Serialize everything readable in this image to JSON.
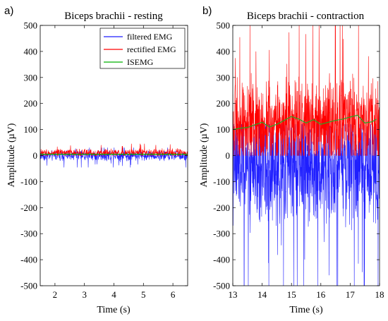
{
  "chart_data": [
    {
      "type": "line",
      "panel_label": "a)",
      "title": "Biceps brachii - resting",
      "xlabel": "Time (s)",
      "ylabel": "Amplitude (µV)",
      "xlim": [
        1.5,
        6.5
      ],
      "ylim": [
        -500,
        500
      ],
      "xticks": [
        2,
        3,
        4,
        5,
        6
      ],
      "yticks": [
        -500,
        -400,
        -300,
        -200,
        -100,
        0,
        100,
        200,
        300,
        400,
        500
      ],
      "grid": false,
      "legend_position": "top-right",
      "series": [
        {
          "name": "filtered EMG",
          "color": "#1f1fff",
          "kind": "noise",
          "center": 0,
          "spread": 12,
          "min": -45,
          "max": 30
        },
        {
          "name": "rectified EMG",
          "color": "#ff0000",
          "kind": "noise",
          "center": 10,
          "spread": 10,
          "min": 0,
          "max": 45
        },
        {
          "name": "ISEMG",
          "color": "#00b000",
          "kind": "line",
          "x": [
            1.5,
            6.5
          ],
          "y": [
            5,
            5
          ]
        }
      ]
    },
    {
      "type": "line",
      "panel_label": "b)",
      "title": "Biceps brachii - contraction",
      "xlabel": "Time (s)",
      "ylabel": "Amplitude (µV)",
      "xlim": [
        13,
        18
      ],
      "ylim": [
        -500,
        500
      ],
      "xticks": [
        13,
        14,
        15,
        16,
        17,
        18
      ],
      "yticks": [
        -500,
        -400,
        -300,
        -200,
        -100,
        0,
        100,
        200,
        300,
        400,
        500
      ],
      "grid": false,
      "series": [
        {
          "name": "filtered EMG",
          "color": "#1f1fff",
          "kind": "noise",
          "center": -40,
          "spread": 140,
          "min": -500,
          "max": 120
        },
        {
          "name": "rectified EMG",
          "color": "#ff0000",
          "kind": "noise",
          "center": 120,
          "spread": 110,
          "min": 0,
          "max": 500
        },
        {
          "name": "ISEMG",
          "color": "#22aa22",
          "kind": "line",
          "x": [
            13.0,
            13.25,
            13.5,
            13.75,
            14.0,
            14.25,
            14.5,
            14.75,
            15.0,
            15.25,
            15.5,
            15.75,
            16.0,
            16.25,
            16.5,
            16.75,
            17.0,
            17.25,
            17.5,
            17.75,
            17.9
          ],
          "y": [
            100,
            105,
            108,
            118,
            128,
            110,
            120,
            135,
            150,
            140,
            125,
            138,
            120,
            128,
            135,
            140,
            148,
            155,
            125,
            130,
            140
          ]
        }
      ]
    }
  ]
}
